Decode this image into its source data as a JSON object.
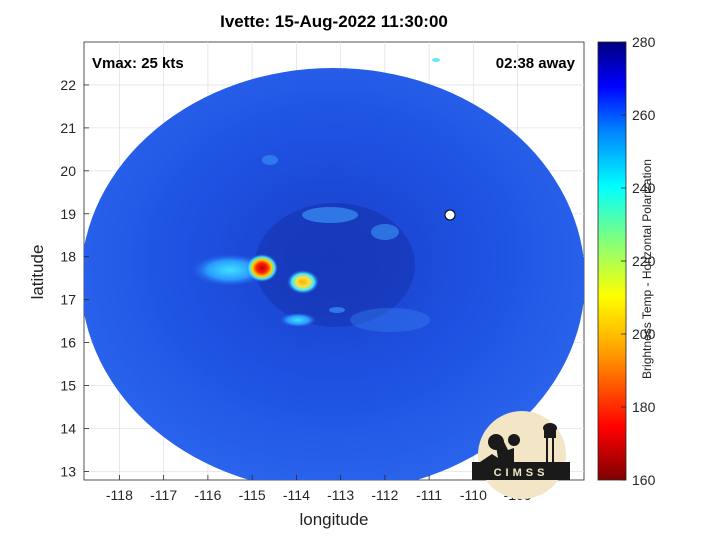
{
  "title": "Ivette: 15-Aug-2022 11:30:00",
  "vmax_text": "Vmax: 25 kts",
  "away_text": "02:38 away",
  "xlabel": "longitude",
  "ylabel": "latitude",
  "x_ticks": [
    "-118",
    "-117",
    "-116",
    "-115",
    "-114",
    "-113",
    "-112",
    "-111",
    "-110",
    "-109"
  ],
  "y_ticks": [
    "22",
    "21",
    "20",
    "19",
    "18",
    "17",
    "16",
    "15",
    "14",
    "13"
  ],
  "colorbar": {
    "label": "Brightness Temp - Horizontal Polarization",
    "ticks": [
      "280",
      "260",
      "240",
      "220",
      "200",
      "180",
      "160"
    ],
    "min": 160,
    "max": 280
  },
  "logo": {
    "text": "CIMSS"
  },
  "map": {
    "lon_range": [
      -118.8,
      -107.5
    ],
    "lat_range": [
      12.8,
      23.0
    ],
    "background_color": "#1d52e0"
  }
}
